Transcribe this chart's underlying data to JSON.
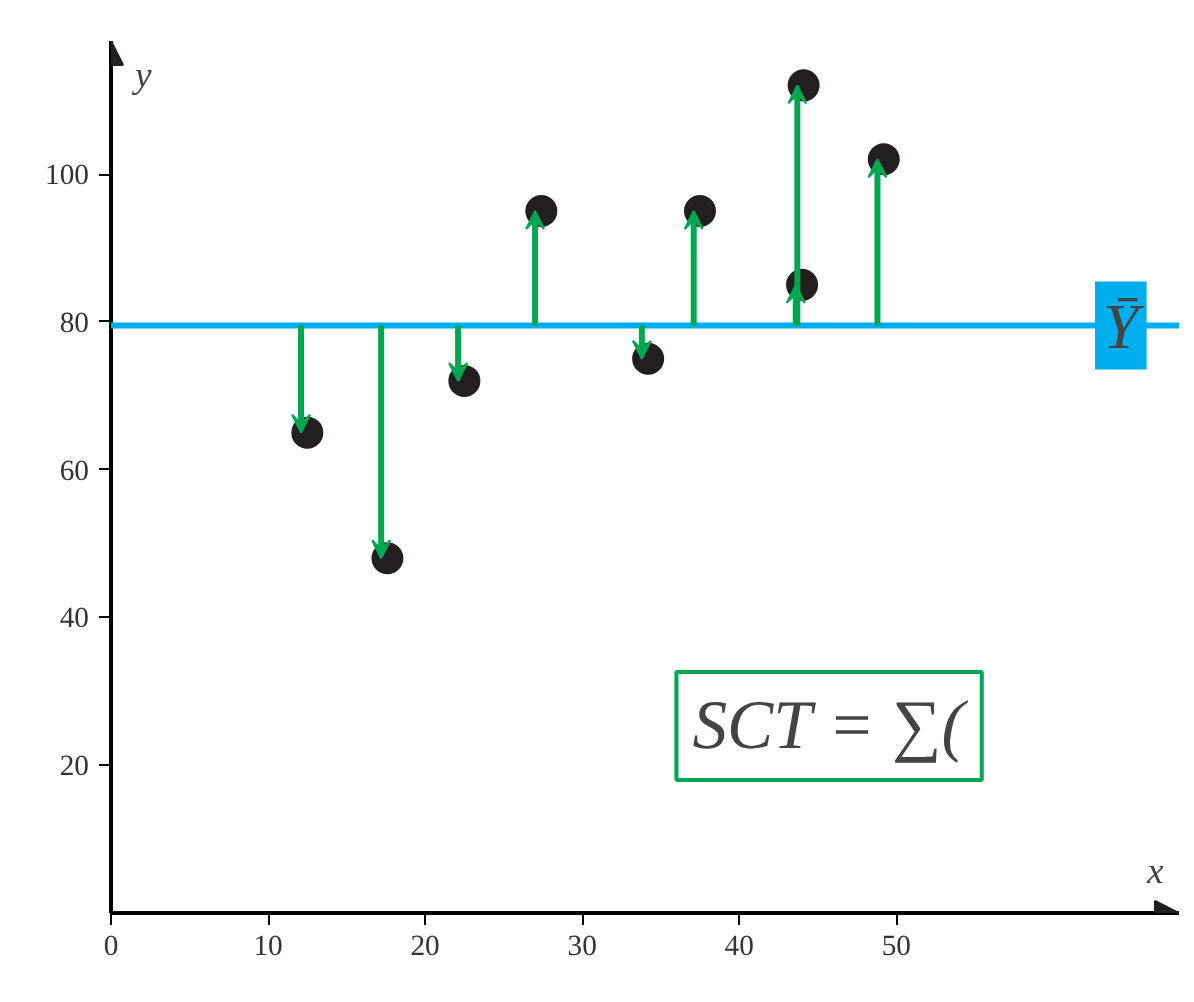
{
  "chart_data": {
    "type": "scatter",
    "xlabel": "x",
    "ylabel": "y",
    "x": [
      12.5,
      17.6,
      22.5,
      27.4,
      34.2,
      37.5,
      44.0,
      44.1,
      49.2
    ],
    "series": [
      {
        "color": "#231f20",
        "values": [
          65,
          48,
          72,
          95,
          75,
          95,
          85,
          112,
          102
        ]
      }
    ],
    "marker": "circle",
    "grid": false,
    "xlim": [
      0,
      68
    ],
    "xticks": [
      {
        "value": 0,
        "label": "0"
      },
      10,
      20,
      30,
      40,
      50
    ],
    "ylim": [
      0,
      118
    ],
    "yticks": [
      20,
      40,
      60,
      80,
      100
    ],
    "ref_lines": [
      {
        "axis": "y",
        "value": 79.5,
        "label": "Ȳ",
        "color": "#00aeef"
      }
    ],
    "annotations": [
      "SCT = ∑("
    ]
  }
}
